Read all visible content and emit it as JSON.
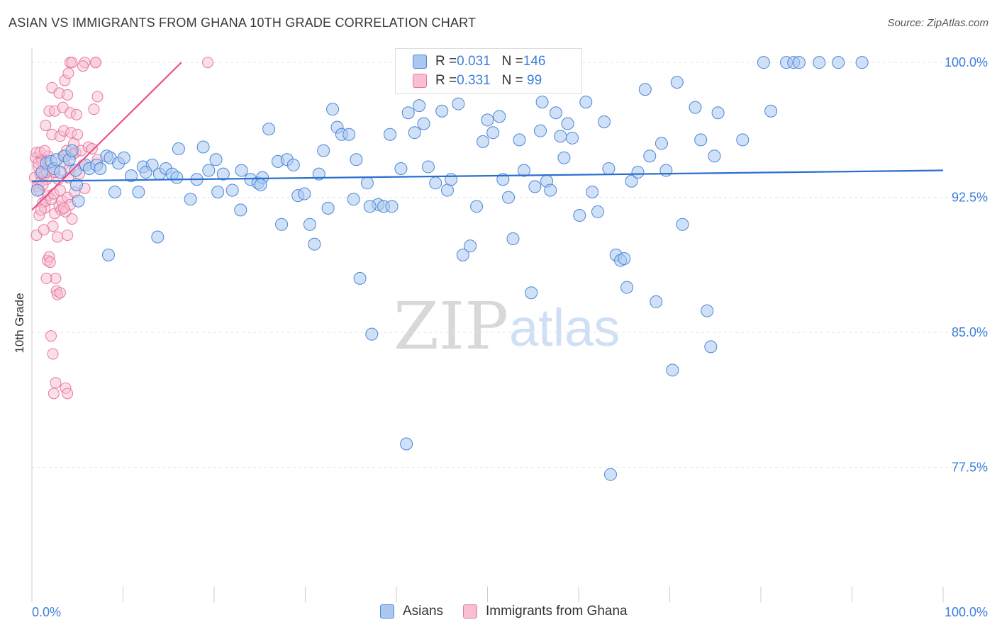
{
  "title": "ASIAN VS IMMIGRANTS FROM GHANA 10TH GRADE CORRELATION CHART",
  "source": "Source: ZipAtlas.com",
  "watermark": {
    "zip": "ZIP",
    "atlas": "atlas"
  },
  "chart_data": {
    "type": "scatter",
    "xlabel": "",
    "ylabel": "10th Grade",
    "xlim": [
      0,
      100
    ],
    "ylim": [
      70.0,
      100.4
    ],
    "x_tick_labels": {
      "left": "0.0%",
      "right": "100.0%"
    },
    "y_ticks": [
      {
        "value": 100.0,
        "label": "100.0%"
      },
      {
        "value": 92.5,
        "label": "92.5%"
      },
      {
        "value": 85.0,
        "label": "85.0%"
      },
      {
        "value": 77.5,
        "label": "77.5%"
      }
    ],
    "colors": {
      "asians_fill": "#aac8f0",
      "asians_stroke": "#4a86d8",
      "asians_line": "#2a6fd0",
      "ghana_fill": "#f8bfd2",
      "ghana_stroke": "#e8789c",
      "ghana_line": "#e8508a",
      "tick_label": "#3d7fd9",
      "grid": "#e6e6e6"
    },
    "legend": {
      "rows": [
        {
          "series": "Asians",
          "r_label": "R = ",
          "r_value": "0.031",
          "n_label": "N = ",
          "n_value": "146"
        },
        {
          "series": "Immigrants from Ghana",
          "r_label": "R = ",
          "r_value": "0.331",
          "n_label": "N = ",
          "n_value": " 99"
        }
      ]
    },
    "series": [
      {
        "name": "Asians",
        "trend": {
          "x": [
            0,
            100
          ],
          "y": [
            93.4,
            94.0
          ]
        },
        "points": [
          [
            0.6,
            92.9
          ],
          [
            1.1,
            93.9
          ],
          [
            1.6,
            94.4
          ],
          [
            2.1,
            94.5
          ],
          [
            2.4,
            94.1
          ],
          [
            2.7,
            94.6
          ],
          [
            3.1,
            93.9
          ],
          [
            3.6,
            94.8
          ],
          [
            4.1,
            94.6
          ],
          [
            4.4,
            95.1
          ],
          [
            4.8,
            94.0
          ],
          [
            5.1,
            92.3
          ],
          [
            5.9,
            94.3
          ],
          [
            6.3,
            94.1
          ],
          [
            7.1,
            94.3
          ],
          [
            7.5,
            94.1
          ],
          [
            8.2,
            94.8
          ],
          [
            8.6,
            94.7
          ],
          [
            9.1,
            92.8
          ],
          [
            9.5,
            94.4
          ],
          [
            10.1,
            94.7
          ],
          [
            10.9,
            93.7
          ],
          [
            11.7,
            92.8
          ],
          [
            12.2,
            94.2
          ],
          [
            13.2,
            94.3
          ],
          [
            14.0,
            93.8
          ],
          [
            14.7,
            94.1
          ],
          [
            15.4,
            93.8
          ],
          [
            16.1,
            95.2
          ],
          [
            17.4,
            92.4
          ],
          [
            18.1,
            93.5
          ],
          [
            18.8,
            95.3
          ],
          [
            19.4,
            94.0
          ],
          [
            20.2,
            94.6
          ],
          [
            21.0,
            93.8
          ],
          [
            22.0,
            92.9
          ],
          [
            23.0,
            94.0
          ],
          [
            24.0,
            93.5
          ],
          [
            24.8,
            93.3
          ],
          [
            25.3,
            93.6
          ],
          [
            26.0,
            96.3
          ],
          [
            27.0,
            94.5
          ],
          [
            28.0,
            94.6
          ],
          [
            28.7,
            94.3
          ],
          [
            29.2,
            92.6
          ],
          [
            29.9,
            92.7
          ],
          [
            30.5,
            91.0
          ],
          [
            31.0,
            89.9
          ],
          [
            31.5,
            93.8
          ],
          [
            32.0,
            95.1
          ],
          [
            32.5,
            91.9
          ],
          [
            33.0,
            97.4
          ],
          [
            33.5,
            96.4
          ],
          [
            34.0,
            96.0
          ],
          [
            34.8,
            96.0
          ],
          [
            35.3,
            92.4
          ],
          [
            35.6,
            94.6
          ],
          [
            36.0,
            88.0
          ],
          [
            36.8,
            93.3
          ],
          [
            38.0,
            92.1
          ],
          [
            38.6,
            92.0
          ],
          [
            37.3,
            84.9
          ],
          [
            39.5,
            92.0
          ],
          [
            39.3,
            96.0
          ],
          [
            40.5,
            94.1
          ],
          [
            41.3,
            97.2
          ],
          [
            42.0,
            96.1
          ],
          [
            42.5,
            97.6
          ],
          [
            43.0,
            96.6
          ],
          [
            43.5,
            94.2
          ],
          [
            44.3,
            93.3
          ],
          [
            45.0,
            97.3
          ],
          [
            45.6,
            92.9
          ],
          [
            46.0,
            93.5
          ],
          [
            46.8,
            97.7
          ],
          [
            47.3,
            89.3
          ],
          [
            48.1,
            89.8
          ],
          [
            48.8,
            92.0
          ],
          [
            49.5,
            95.6
          ],
          [
            50.0,
            96.8
          ],
          [
            50.6,
            96.1
          ],
          [
            51.3,
            97.0
          ],
          [
            51.7,
            93.5
          ],
          [
            52.3,
            92.5
          ],
          [
            52.8,
            90.2
          ],
          [
            53.5,
            95.7
          ],
          [
            54.0,
            94.0
          ],
          [
            54.8,
            87.2
          ],
          [
            55.2,
            93.1
          ],
          [
            55.8,
            96.2
          ],
          [
            56.5,
            93.4
          ],
          [
            56.9,
            92.9
          ],
          [
            57.5,
            97.2
          ],
          [
            58.0,
            95.9
          ],
          [
            58.4,
            94.7
          ],
          [
            58.8,
            96.6
          ],
          [
            59.3,
            95.8
          ],
          [
            60.1,
            91.5
          ],
          [
            60.8,
            97.8
          ],
          [
            61.5,
            92.8
          ],
          [
            62.1,
            91.7
          ],
          [
            62.8,
            96.7
          ],
          [
            63.3,
            94.1
          ],
          [
            64.1,
            89.3
          ],
          [
            64.6,
            89.0
          ],
          [
            65.0,
            89.1
          ],
          [
            65.3,
            87.5
          ],
          [
            65.8,
            93.4
          ],
          [
            66.5,
            93.9
          ],
          [
            67.3,
            98.5
          ],
          [
            67.8,
            94.8
          ],
          [
            68.5,
            86.7
          ],
          [
            69.1,
            95.5
          ],
          [
            69.6,
            94.0
          ],
          [
            70.3,
            82.9
          ],
          [
            70.8,
            98.9
          ],
          [
            71.4,
            91.0
          ],
          [
            72.8,
            97.5
          ],
          [
            73.4,
            95.7
          ],
          [
            74.1,
            86.2
          ],
          [
            74.5,
            84.2
          ],
          [
            74.9,
            94.8
          ],
          [
            75.3,
            97.2
          ],
          [
            78.0,
            95.7
          ],
          [
            80.3,
            100.0
          ],
          [
            81.1,
            97.3
          ],
          [
            82.8,
            100.0
          ],
          [
            83.6,
            100.0
          ],
          [
            84.2,
            100.0
          ],
          [
            86.4,
            100.0
          ],
          [
            88.5,
            100.0
          ],
          [
            91.1,
            100.0
          ],
          [
            57.2,
            98.7
          ],
          [
            41.1,
            78.8
          ],
          [
            63.5,
            77.1
          ],
          [
            56.0,
            97.8
          ],
          [
            37.1,
            92.0
          ],
          [
            27.4,
            91.0
          ],
          [
            25.1,
            93.2
          ],
          [
            20.4,
            92.8
          ],
          [
            13.8,
            90.3
          ],
          [
            8.4,
            89.3
          ],
          [
            4.9,
            93.2
          ],
          [
            12.5,
            93.9
          ],
          [
            22.9,
            91.8
          ],
          [
            15.9,
            93.6
          ]
        ]
      },
      {
        "name": "Immigrants from Ghana",
        "trend": {
          "x": [
            0,
            16.4
          ],
          "y": [
            91.8,
            100.0
          ]
        },
        "points": [
          [
            0.3,
            93.6
          ],
          [
            0.4,
            94.7
          ],
          [
            0.5,
            95.0
          ],
          [
            0.6,
            93.1
          ],
          [
            0.7,
            94.2
          ],
          [
            0.8,
            92.9
          ],
          [
            0.9,
            93.8
          ],
          [
            1.0,
            93.4
          ],
          [
            1.1,
            94.6
          ],
          [
            1.2,
            92.2
          ],
          [
            1.3,
            93.7
          ],
          [
            1.4,
            91.9
          ],
          [
            1.5,
            92.3
          ],
          [
            1.6,
            93.5
          ],
          [
            1.7,
            89.0
          ],
          [
            1.8,
            92.6
          ],
          [
            1.9,
            89.2
          ],
          [
            2.0,
            94.0
          ],
          [
            2.1,
            92.4
          ],
          [
            2.2,
            96.0
          ],
          [
            2.3,
            90.9
          ],
          [
            2.4,
            92.7
          ],
          [
            2.5,
            91.6
          ],
          [
            2.6,
            88.0
          ],
          [
            2.7,
            87.3
          ],
          [
            2.8,
            90.3
          ],
          [
            2.9,
            93.5
          ],
          [
            3.0,
            92.0
          ],
          [
            3.1,
            95.9
          ],
          [
            3.2,
            91.8
          ],
          [
            3.3,
            92.3
          ],
          [
            3.4,
            94.8
          ],
          [
            3.5,
            96.2
          ],
          [
            3.6,
            94.4
          ],
          [
            3.7,
            91.7
          ],
          [
            3.8,
            95.1
          ],
          [
            3.9,
            92.5
          ],
          [
            4.0,
            93.6
          ],
          [
            4.1,
            94.1
          ],
          [
            4.2,
            92.1
          ],
          [
            4.3,
            96.1
          ],
          [
            4.4,
            91.3
          ],
          [
            4.5,
            94.9
          ],
          [
            4.6,
            95.5
          ],
          [
            4.7,
            92.8
          ],
          [
            4.8,
            95.0
          ],
          [
            5.0,
            96.0
          ],
          [
            5.2,
            93.8
          ],
          [
            5.4,
            95.1
          ],
          [
            5.6,
            94.3
          ],
          [
            5.8,
            93.0
          ],
          [
            6.2,
            95.3
          ],
          [
            6.6,
            95.2
          ],
          [
            7.2,
            94.6
          ],
          [
            0.5,
            90.4
          ],
          [
            0.8,
            91.5
          ],
          [
            1.3,
            90.7
          ],
          [
            2.1,
            84.8
          ],
          [
            2.3,
            83.8
          ],
          [
            2.6,
            82.2
          ],
          [
            2.4,
            81.6
          ],
          [
            3.7,
            81.9
          ],
          [
            3.9,
            81.6
          ],
          [
            1.5,
            96.5
          ],
          [
            1.9,
            97.3
          ],
          [
            2.2,
            98.6
          ],
          [
            2.5,
            97.3
          ],
          [
            3.0,
            98.3
          ],
          [
            3.4,
            97.5
          ],
          [
            3.6,
            99.0
          ],
          [
            3.9,
            98.2
          ],
          [
            4.0,
            99.4
          ],
          [
            4.2,
            97.2
          ],
          [
            4.9,
            97.1
          ],
          [
            6.8,
            97.4
          ],
          [
            7.2,
            98.1
          ],
          [
            4.2,
            100.0
          ],
          [
            4.4,
            100.0
          ],
          [
            5.8,
            100.0
          ],
          [
            7.0,
            100.0
          ],
          [
            7.0,
            100.0
          ],
          [
            5.6,
            99.8
          ],
          [
            19.3,
            100.0
          ],
          [
            0.9,
            95.0
          ],
          [
            1.1,
            94.5
          ],
          [
            1.2,
            93.2
          ],
          [
            1.6,
            93.9
          ],
          [
            1.8,
            94.8
          ],
          [
            2.5,
            93.9
          ],
          [
            3.1,
            92.9
          ],
          [
            3.5,
            91.9
          ],
          [
            3.9,
            90.4
          ],
          [
            1.0,
            91.8
          ],
          [
            2.0,
            88.9
          ],
          [
            1.6,
            88.0
          ],
          [
            2.8,
            87.1
          ],
          [
            3.1,
            87.2
          ],
          [
            0.7,
            94.4
          ],
          [
            1.4,
            95.1
          ]
        ]
      }
    ]
  }
}
